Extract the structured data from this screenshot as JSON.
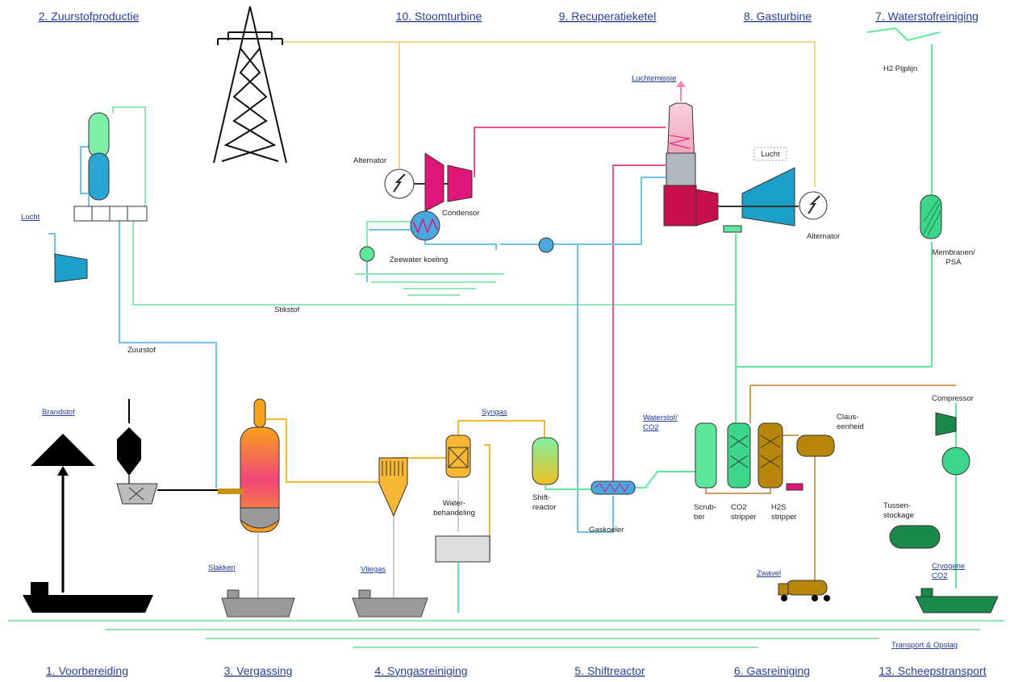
{
  "sections_top": [
    "2. Zuurstofproductie",
    "10. Stoomturbine",
    "9. Recuperatieketel",
    "8. Gasturbine",
    "7. Waterstofreiniging"
  ],
  "sections_bottom": [
    "1. Voorbereiding",
    "3. Vergassing",
    "4. Syngasreiniging",
    "5. Shiftreactor",
    "6. Gasreiniging",
    "13. Scheepstransport"
  ],
  "labels": [
    [
      "Lucht"
    ],
    [
      "Zuurstof"
    ],
    [
      "Stikstof"
    ],
    [
      "Alternator"
    ],
    [
      "Condensor"
    ],
    [
      "Zeewater koeling"
    ],
    [
      "Luchtemissie"
    ],
    [
      "Lucht"
    ],
    [
      "Alternator"
    ],
    [
      "H2 Pijplijn"
    ],
    [
      "Membranen/",
      "PSA"
    ],
    [
      "Brandstof"
    ],
    [
      "Syngas"
    ],
    [
      "Water-",
      "behandeling"
    ],
    [
      "Shift-",
      "reactor"
    ],
    [
      "Waterstof/",
      "CO2"
    ],
    [
      "Gaskoeler"
    ],
    [
      "Scrub-",
      "ber"
    ],
    [
      "CO2",
      "stripper"
    ],
    [
      "H2S",
      "stripper"
    ],
    [
      "Claus-",
      "eenheid"
    ],
    [
      "Compressor"
    ],
    [
      "Tussen-",
      "stockage"
    ],
    [
      "Cryogene",
      "CO2"
    ],
    [
      "Slakken"
    ],
    [
      "Vliegas"
    ],
    [
      "Zwavel"
    ],
    [
      "Transport & Opslag"
    ]
  ]
}
